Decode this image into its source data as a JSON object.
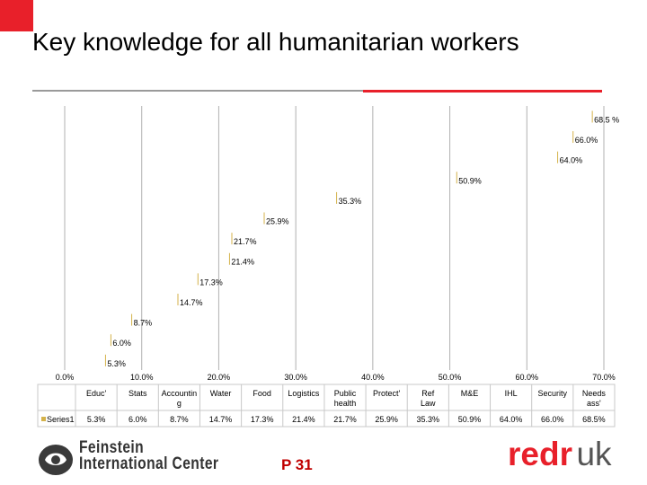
{
  "slide": {
    "title": "Key knowledge for all humanitarian workers",
    "page_number": "P 31",
    "logo_left_line1": "Feinstein",
    "logo_left_line2": "International Center",
    "logo_right_part1": "redr",
    "logo_right_part2": "uk"
  },
  "colors": {
    "accent_red": "#e8202a",
    "grid": "#b0b0b0",
    "leader_line": "#d4b24a"
  },
  "chart_data": {
    "type": "bar",
    "orientation": "horizontal",
    "categories": [
      "Educ'",
      "Stats",
      "Accountin g",
      "Water",
      "Food",
      "Logistics",
      "Public health",
      "Protect'",
      "Ref Law",
      "M&E",
      "IHL",
      "Security",
      "Needs ass'"
    ],
    "series": [
      {
        "name": "Series1",
        "values": [
          5.3,
          6.0,
          8.7,
          14.7,
          17.3,
          21.4,
          21.7,
          25.9,
          35.3,
          50.9,
          64.0,
          66.0,
          68.5
        ]
      }
    ],
    "data_labels": [
      "5.3%",
      "6.0%",
      "8.7%",
      "14.7%",
      "17.3%",
      "21.4%",
      "21.7%",
      "25.9%",
      "35.3%",
      "50.9%",
      "64.0%",
      "66.0%",
      "68.5 %"
    ],
    "table_values": [
      "5.3%",
      "6.0%",
      "8.7%",
      "14.7%",
      "17.3%",
      "21.4%",
      "21.7%",
      "25.9%",
      "35.3%",
      "50.9%",
      "64.0%",
      "66.0%",
      "68.5%"
    ],
    "x_ticks": [
      "0.0%",
      "10.0%",
      "20.0%",
      "30.0%",
      "40.0%",
      "50.0%",
      "60.0%",
      "70.0%"
    ],
    "xlim": [
      0,
      70
    ],
    "grid": true,
    "legend": "data-table-left"
  }
}
